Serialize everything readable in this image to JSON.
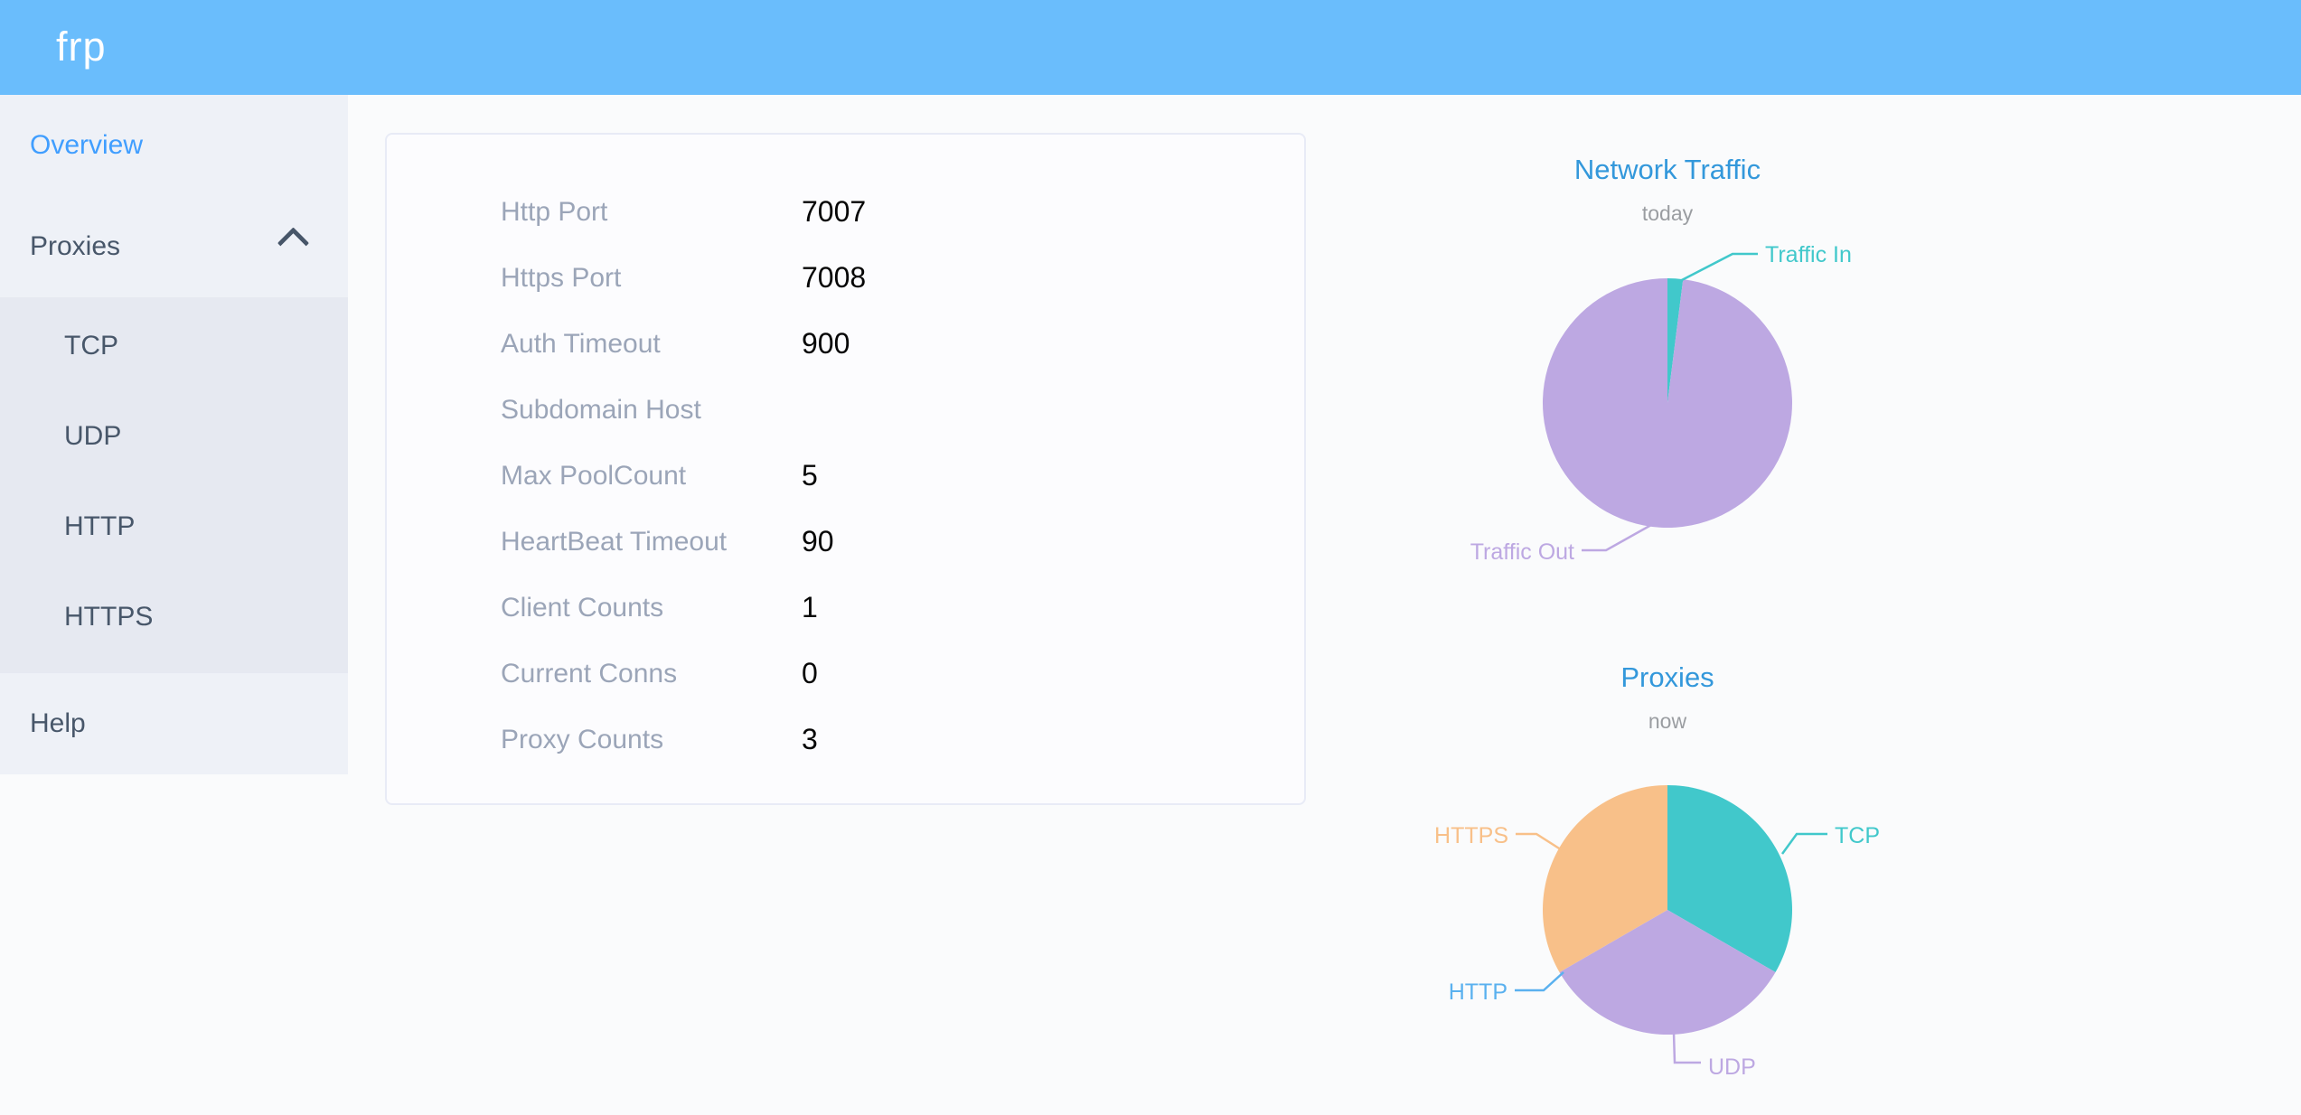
{
  "header": {
    "logo_text": "frp",
    "background_color": "#6abdfc"
  },
  "sidebar": {
    "active_color": "#409eff",
    "items": [
      {
        "label": "Overview",
        "active": true
      },
      {
        "label": "Proxies",
        "expanded": true,
        "children": [
          "TCP",
          "UDP",
          "HTTP",
          "HTTPS"
        ]
      },
      {
        "label": "Help",
        "active": false
      }
    ]
  },
  "server_info": {
    "rows": [
      {
        "label": "Http Port",
        "value": "7007"
      },
      {
        "label": "Https Port",
        "value": "7008"
      },
      {
        "label": "Auth Timeout",
        "value": "900"
      },
      {
        "label": "Subdomain Host",
        "value": ""
      },
      {
        "label": "Max PoolCount",
        "value": "5"
      },
      {
        "label": "HeartBeat Timeout",
        "value": "90"
      },
      {
        "label": "Client Counts",
        "value": "1"
      },
      {
        "label": "Current Conns",
        "value": "0"
      },
      {
        "label": "Proxy Counts",
        "value": "3"
      }
    ]
  },
  "chart_data": [
    {
      "type": "pie",
      "title": "Network Traffic",
      "subtitle": "today",
      "legend_position": "none",
      "labels_style": "leader-lines",
      "values_estimated_percent": true,
      "series": [
        {
          "name": "Traffic In",
          "value": 2,
          "color": "#41c8cb"
        },
        {
          "name": "Traffic Out",
          "value": 98,
          "color": "#bda8e2"
        }
      ]
    },
    {
      "type": "pie",
      "title": "Proxies",
      "subtitle": "now",
      "legend_position": "none",
      "labels_style": "leader-lines",
      "series": [
        {
          "name": "TCP",
          "value": 1,
          "color": "#41c8cb"
        },
        {
          "name": "UDP",
          "value": 1,
          "color": "#bda8e2"
        },
        {
          "name": "HTTP",
          "value": 0,
          "color": "#5ab1ef"
        },
        {
          "name": "HTTPS",
          "value": 1,
          "color": "#f8c089"
        }
      ]
    }
  ],
  "colors": {
    "chart_title_blue": "#3398db",
    "subtitle_gray": "#9a9da1",
    "sidebar_bg": "#eef1f7",
    "submenu_bg": "#e6e9f1",
    "card_border": "#e8ebf6"
  }
}
